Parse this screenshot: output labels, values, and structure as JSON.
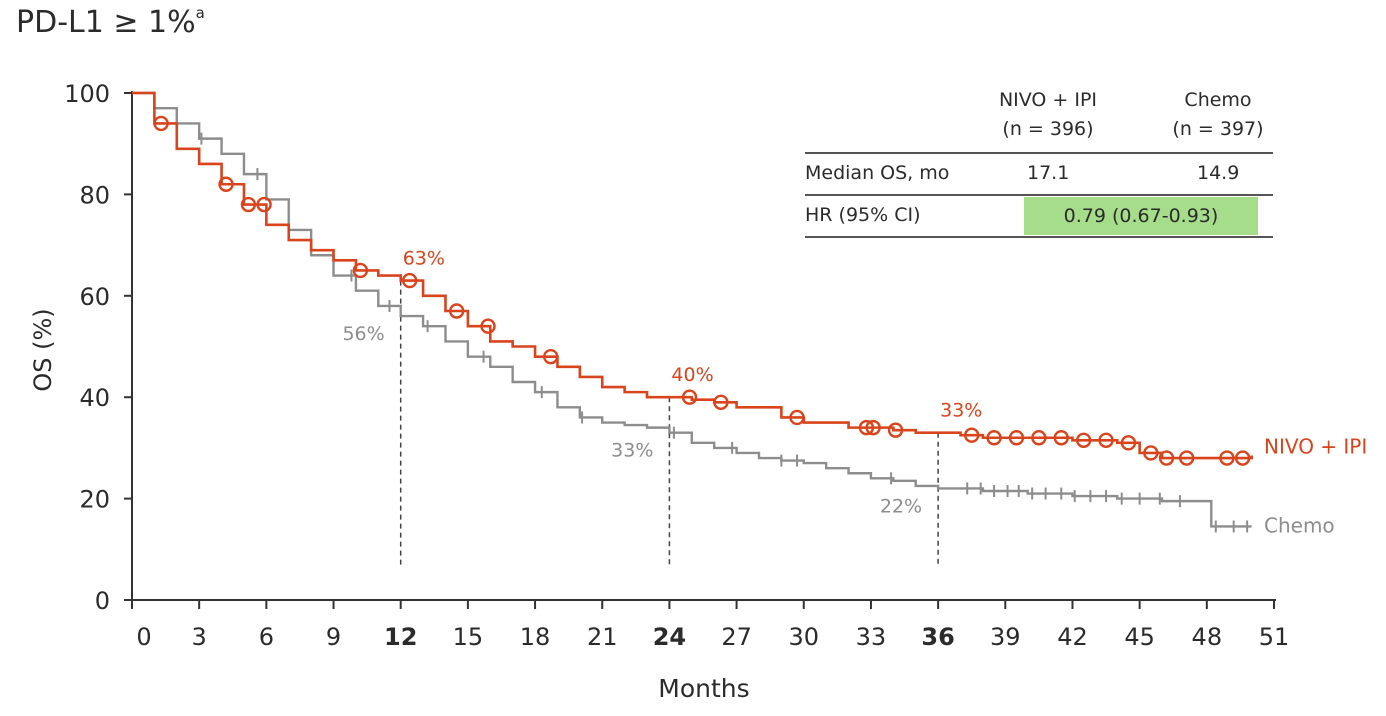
{
  "title": {
    "text": "PD-L1 ≥ 1%",
    "sup": "a"
  },
  "table": {
    "arm1_name": "NIVO + IPI",
    "arm1_n": "(n = 396)",
    "arm2_name": "Chemo",
    "arm2_n": "(n = 397)",
    "row1_label": "Median OS, mo",
    "row1_arm1": "17.1",
    "row1_arm2": "14.9",
    "row2_label": "HR (95% CI)",
    "row2_value": "0.79 (0.67-0.93)",
    "highlight_color": "#a6dd8a"
  },
  "chart_data": {
    "type": "line",
    "xlabel": "Months",
    "ylabel": "OS (%)",
    "xlim": [
      0,
      51
    ],
    "ylim": [
      0,
      100
    ],
    "x_ticks": [
      0,
      3,
      6,
      9,
      12,
      15,
      18,
      21,
      24,
      27,
      30,
      33,
      36,
      39,
      42,
      45,
      48,
      51
    ],
    "x_ticks_bold": [
      12,
      24,
      36
    ],
    "y_ticks": [
      0,
      20,
      40,
      60,
      80,
      100
    ],
    "reference_lines_x": [
      12,
      24,
      36
    ],
    "series": [
      {
        "name": "NIVO + IPI",
        "color": "#d9441c",
        "x": [
          0,
          1,
          2,
          3,
          4,
          5,
          6,
          7,
          8,
          9,
          10,
          11,
          12,
          13,
          14,
          15,
          16,
          17,
          18,
          19,
          20,
          21,
          22,
          23,
          24,
          25,
          26,
          27,
          28,
          29,
          30,
          31,
          32,
          33,
          34,
          35,
          36,
          37,
          38,
          40,
          42,
          44,
          45,
          46,
          48,
          50
        ],
        "values": [
          100,
          94,
          89,
          86,
          82,
          78,
          74,
          71,
          69,
          67,
          65,
          64,
          63,
          60,
          57,
          54,
          51,
          50,
          48,
          46,
          44,
          42,
          41,
          40,
          40,
          39.5,
          39,
          38,
          38,
          36,
          35,
          35,
          34,
          34,
          33.5,
          33,
          33,
          32.5,
          32,
          32,
          31.5,
          31,
          29,
          28,
          28,
          28.5
        ],
        "censors_x": [
          1.3,
          4.2,
          5.2,
          5.9,
          10.2,
          12.4,
          14.5,
          15.9,
          18.7,
          24.9,
          26.3,
          29.7,
          32.8,
          33.1,
          34.1,
          37.5,
          38.5,
          39.5,
          40.5,
          41.5,
          42.5,
          43.5,
          44.5,
          45.5,
          46.2,
          47.1,
          48.9,
          49.6
        ],
        "label": "NIVO + IPI",
        "annotations": [
          {
            "x": 12,
            "text": "63%"
          },
          {
            "x": 24,
            "text": "40%"
          },
          {
            "x": 36,
            "text": "33%"
          }
        ]
      },
      {
        "name": "Chemo",
        "color": "#8d8d8d",
        "x": [
          0,
          1,
          2,
          3,
          4,
          5,
          6,
          7,
          8,
          9,
          10,
          11,
          12,
          13,
          14,
          15,
          16,
          17,
          18,
          19,
          20,
          21,
          22,
          23,
          24,
          25,
          26,
          27,
          28,
          29,
          30,
          31,
          32,
          33,
          34,
          35,
          36,
          38,
          40,
          42,
          44,
          46,
          48,
          48.2,
          50
        ],
        "values": [
          100,
          97,
          94,
          91,
          88,
          84,
          79,
          73,
          68,
          64,
          61,
          58,
          56,
          54,
          51,
          48,
          46,
          43,
          41,
          38,
          36,
          35,
          34.5,
          34,
          33,
          31,
          30,
          29,
          28,
          27.5,
          27,
          26,
          25,
          24,
          23.5,
          22.5,
          22,
          21.5,
          21,
          20.5,
          20,
          19.5,
          19.5,
          14.5,
          14.5
        ],
        "censors_x": [
          3.1,
          5.6,
          9.8,
          11.5,
          13.2,
          15.7,
          18.3,
          20.1,
          24.2,
          26.8,
          29.0,
          29.7,
          33.9,
          37.3,
          37.9,
          38.5,
          39.1,
          39.6,
          40.2,
          40.8,
          41.5,
          42.1,
          42.8,
          43.5,
          44.2,
          45.0,
          45.9,
          46.8,
          48.4,
          49.2,
          49.8
        ],
        "label": "Chemo",
        "annotations": [
          {
            "x": 12,
            "text": "56%"
          },
          {
            "x": 24,
            "text": "33%"
          },
          {
            "x": 36,
            "text": "22%"
          }
        ]
      }
    ]
  }
}
